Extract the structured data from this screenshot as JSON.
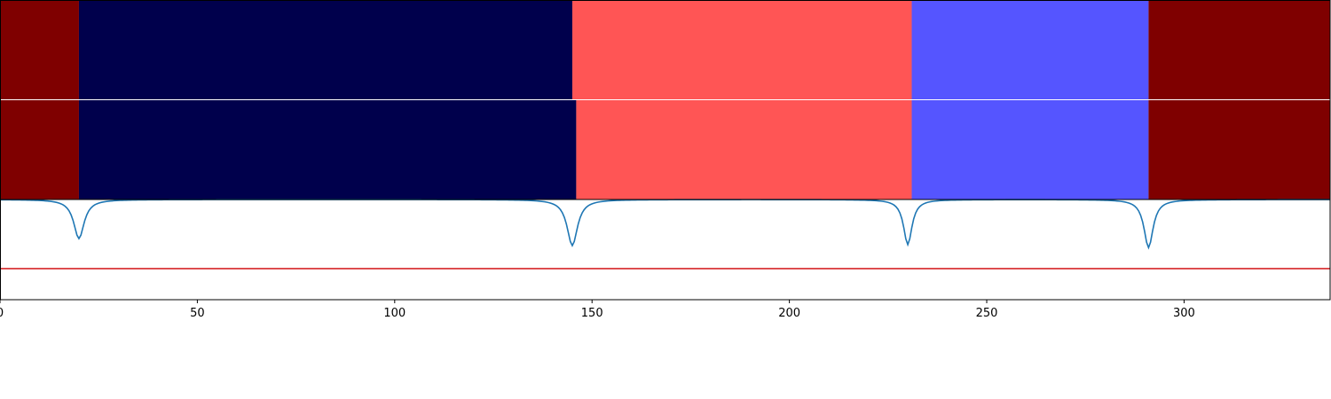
{
  "chart_data": {
    "type": "heatmap",
    "x_range": [
      0,
      337
    ],
    "x_ticks": [
      {
        "value": 0,
        "label": "0"
      },
      {
        "value": 50,
        "label": "50"
      },
      {
        "value": 100,
        "label": "100"
      },
      {
        "value": 150,
        "label": "150"
      },
      {
        "value": 200,
        "label": "200"
      },
      {
        "value": 250,
        "label": "250"
      },
      {
        "value": 300,
        "label": "300"
      }
    ],
    "segment_rows": [
      {
        "segments": [
          {
            "start": 0,
            "end": 20,
            "color": "#7f0000"
          },
          {
            "start": 20,
            "end": 145,
            "color": "#00004c"
          },
          {
            "start": 145,
            "end": 231,
            "color": "#ff5555"
          },
          {
            "start": 231,
            "end": 291,
            "color": "#5555ff"
          },
          {
            "start": 291,
            "end": 337,
            "color": "#7f0000"
          }
        ]
      },
      {
        "segments": [
          {
            "start": 0,
            "end": 20,
            "color": "#7f0000"
          },
          {
            "start": 20,
            "end": 146,
            "color": "#00004c"
          },
          {
            "start": 146,
            "end": 231,
            "color": "#ff5555"
          },
          {
            "start": 231,
            "end": 291,
            "color": "#5555ff"
          },
          {
            "start": 291,
            "end": 337,
            "color": "#7f0000"
          }
        ]
      }
    ],
    "signal": {
      "color": "#1f77b4",
      "y_range": [
        0,
        1
      ],
      "baseline": 1.0,
      "dips": [
        {
          "center": 20,
          "depth": 0.39,
          "width": 1.6
        },
        {
          "center": 145,
          "depth": 0.46,
          "width": 1.6
        },
        {
          "center": 230,
          "depth": 0.45,
          "width": 1.3
        },
        {
          "center": 291,
          "depth": 0.48,
          "width": 1.4
        }
      ]
    },
    "threshold": {
      "value": 0.31,
      "color": "#d62728"
    }
  }
}
